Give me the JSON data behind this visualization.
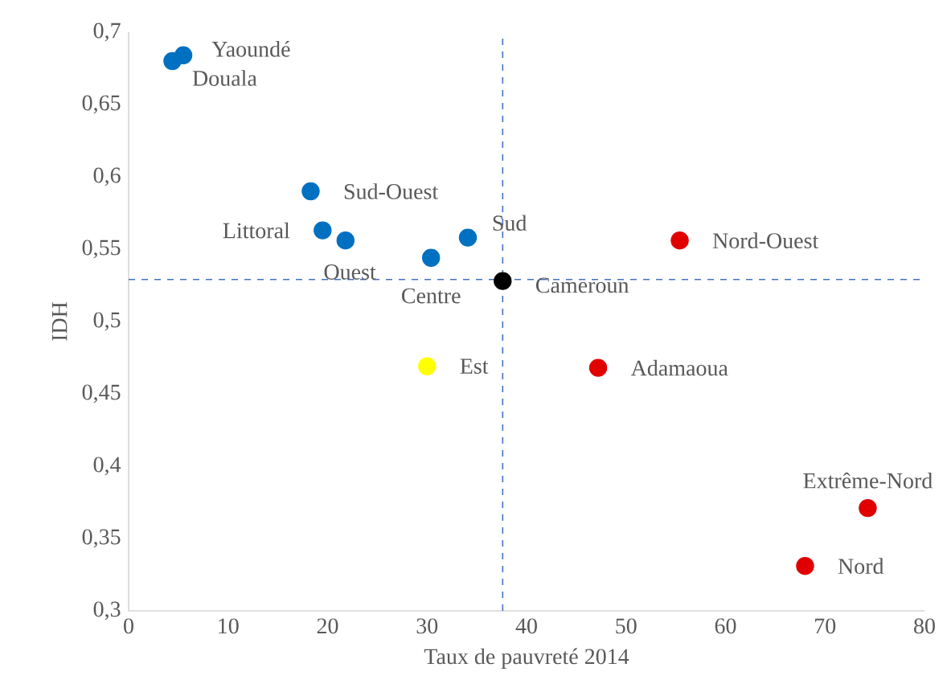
{
  "chart_data": {
    "type": "scatter",
    "xlabel": "Taux de pauvreté 2014",
    "ylabel": "IDH",
    "x": [
      5.5,
      4.4,
      18.3,
      19.5,
      21.8,
      30.4,
      34.1,
      37.6,
      55.4,
      30.0,
      47.2,
      74.3,
      68.0
    ],
    "series": [
      {
        "values": [
          0.684,
          0.68,
          0.59,
          0.563,
          0.556,
          0.544,
          0.558,
          0.528,
          0.556,
          0.469,
          0.468,
          0.371,
          0.331
        ],
        "colors": [
          "#0070c0",
          "#0070c0",
          "#0070c0",
          "#0070c0",
          "#0070c0",
          "#0070c0",
          "#0070c0",
          "#000000",
          "#e00000",
          "#ffff00",
          "#e00000",
          "#e00000",
          "#e00000"
        ]
      }
    ],
    "xlim": [
      0,
      80
    ],
    "xticks": [
      0,
      10,
      20,
      30,
      40,
      50,
      60,
      70,
      80
    ],
    "ylim": [
      0.3,
      0.7
    ],
    "yticks": [
      {
        "value": 0.3,
        "label": "0,3"
      },
      {
        "value": 0.35,
        "label": "0,35"
      },
      {
        "value": 0.4,
        "label": "0,4"
      },
      {
        "value": 0.45,
        "label": "0,45"
      },
      {
        "value": 0.5,
        "label": "0,5"
      },
      {
        "value": 0.55,
        "label": "0,55"
      },
      {
        "value": 0.6,
        "label": "0,6"
      },
      {
        "value": 0.65,
        "label": "0,65"
      },
      {
        "value": 0.7,
        "label": "0,7"
      }
    ],
    "grid": false,
    "ref_lines": [
      {
        "axis": "x",
        "value": 37.6,
        "color": "#4472c4",
        "line_style": "dashed"
      },
      {
        "axis": "y",
        "value": 0.529,
        "color": "#4472c4",
        "line_style": "dashed"
      }
    ],
    "annotations": [
      {
        "text": "Yaoundé",
        "x": 5.5,
        "y": 0.684
      },
      {
        "text": "Douala",
        "x": 4.4,
        "y": 0.68
      },
      {
        "text": "Sud-Ouest",
        "x": 18.3,
        "y": 0.59
      },
      {
        "text": "Littoral",
        "x": 19.5,
        "y": 0.563
      },
      {
        "text": "Ouest",
        "x": 21.8,
        "y": 0.556
      },
      {
        "text": "Centre",
        "x": 30.4,
        "y": 0.544
      },
      {
        "text": "Sud",
        "x": 34.1,
        "y": 0.558
      },
      {
        "text": "Cameroun",
        "x": 37.6,
        "y": 0.528
      },
      {
        "text": "Nord-Ouest",
        "x": 55.4,
        "y": 0.556
      },
      {
        "text": "Est",
        "x": 30.0,
        "y": 0.469
      },
      {
        "text": "Adamaoua",
        "x": 47.2,
        "y": 0.468
      },
      {
        "text": "Extrême-Nord",
        "x": 74.3,
        "y": 0.371
      },
      {
        "text": "Nord",
        "x": 68.0,
        "y": 0.331
      }
    ]
  }
}
